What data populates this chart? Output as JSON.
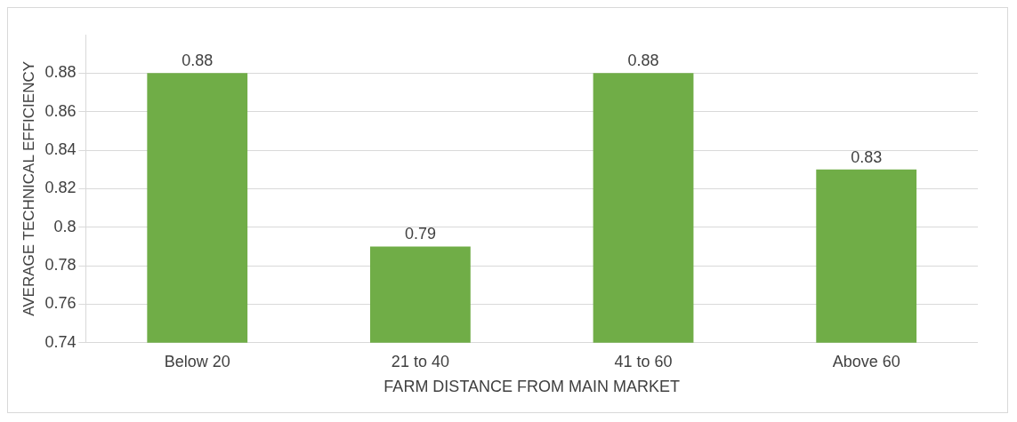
{
  "chart_data": {
    "type": "bar",
    "xlabel": "FARM DISTANCE FROM MAIN MARKET",
    "ylabel": "AVERAGE TECHNICAL EFFICIENCY",
    "categories": [
      "Below 20",
      "21 to 40",
      "41 to 60",
      "Above 60"
    ],
    "values": [
      0.88,
      0.79,
      0.88,
      0.83
    ],
    "color": "#70ad47",
    "ylim": [
      0.74,
      0.9
    ],
    "yticks": [
      0.74,
      0.76,
      0.78,
      0.8,
      0.82,
      0.84,
      0.86,
      0.88
    ],
    "grid": "y",
    "data_labels": true
  }
}
